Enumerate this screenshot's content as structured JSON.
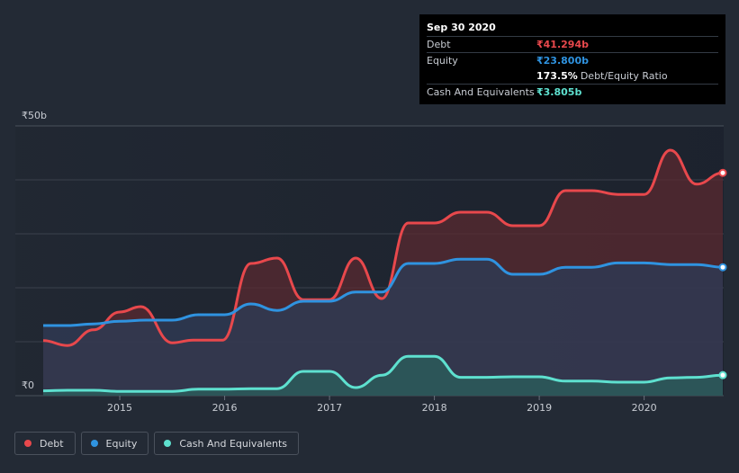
{
  "tooltip": {
    "date": "Sep 30 2020",
    "debt_label": "Debt",
    "debt_value": "₹41.294b",
    "equity_label": "Equity",
    "equity_value": "₹23.800b",
    "ratio_value": "173.5%",
    "ratio_label": "Debt/Equity Ratio",
    "cash_label": "Cash And Equivalents",
    "cash_value": "₹3.805b"
  },
  "legend": {
    "debt": "Debt",
    "equity": "Equity",
    "cash": "Cash And Equivalents"
  },
  "colors": {
    "debt": "#e8484c",
    "equity": "#2f93e0",
    "cash": "#5ee0cf"
  },
  "chart_data": {
    "type": "area",
    "title": "",
    "xlabel": "",
    "ylabel": "",
    "ylim": [
      0,
      50
    ],
    "y_unit": "₹b",
    "y_tick_labels": [
      {
        "value": 50,
        "label": "₹50b"
      },
      {
        "value": 0,
        "label": "₹0"
      }
    ],
    "x_ticks": [
      2015,
      2016,
      2017,
      2018,
      2019,
      2020
    ],
    "xlim": [
      2014.27,
      2020.75
    ],
    "series": [
      {
        "name": "Debt",
        "points": [
          [
            2014.27,
            10.2
          ],
          [
            2014.5,
            9.3
          ],
          [
            2014.75,
            12.2
          ],
          [
            2015.0,
            15.5
          ],
          [
            2015.2,
            16.5
          ],
          [
            2015.5,
            9.8
          ],
          [
            2015.7,
            10.3
          ],
          [
            2015.98,
            10.3
          ],
          [
            2016.25,
            24.5
          ],
          [
            2016.5,
            25.5
          ],
          [
            2016.75,
            17.8
          ],
          [
            2017.0,
            17.8
          ],
          [
            2017.25,
            25.5
          ],
          [
            2017.5,
            18.0
          ],
          [
            2017.75,
            32.0
          ],
          [
            2018.0,
            32.0
          ],
          [
            2018.25,
            34.0
          ],
          [
            2018.5,
            34.0
          ],
          [
            2018.75,
            31.5
          ],
          [
            2019.0,
            31.5
          ],
          [
            2019.25,
            38.0
          ],
          [
            2019.5,
            38.0
          ],
          [
            2019.75,
            37.3
          ],
          [
            2020.0,
            37.3
          ],
          [
            2020.25,
            45.5
          ],
          [
            2020.5,
            39.2
          ],
          [
            2020.75,
            41.294
          ]
        ]
      },
      {
        "name": "Equity",
        "points": [
          [
            2014.27,
            13.0
          ],
          [
            2014.5,
            13.0
          ],
          [
            2014.75,
            13.3
          ],
          [
            2015.0,
            13.8
          ],
          [
            2015.25,
            14.0
          ],
          [
            2015.5,
            14.0
          ],
          [
            2015.75,
            15.0
          ],
          [
            2016.0,
            15.0
          ],
          [
            2016.25,
            17.0
          ],
          [
            2016.5,
            15.8
          ],
          [
            2016.75,
            17.5
          ],
          [
            2017.0,
            17.5
          ],
          [
            2017.25,
            19.2
          ],
          [
            2017.5,
            19.2
          ],
          [
            2017.75,
            24.5
          ],
          [
            2018.0,
            24.5
          ],
          [
            2018.25,
            25.3
          ],
          [
            2018.5,
            25.3
          ],
          [
            2018.75,
            22.5
          ],
          [
            2019.0,
            22.5
          ],
          [
            2019.25,
            23.8
          ],
          [
            2019.5,
            23.8
          ],
          [
            2019.75,
            24.6
          ],
          [
            2020.0,
            24.6
          ],
          [
            2020.25,
            24.3
          ],
          [
            2020.5,
            24.3
          ],
          [
            2020.75,
            23.8
          ]
        ]
      },
      {
        "name": "Cash And Equivalents",
        "points": [
          [
            2014.27,
            0.9
          ],
          [
            2014.5,
            1.0
          ],
          [
            2014.75,
            1.0
          ],
          [
            2015.0,
            0.8
          ],
          [
            2015.25,
            0.8
          ],
          [
            2015.5,
            0.8
          ],
          [
            2015.75,
            1.2
          ],
          [
            2016.0,
            1.2
          ],
          [
            2016.25,
            1.3
          ],
          [
            2016.5,
            1.3
          ],
          [
            2016.75,
            4.5
          ],
          [
            2017.0,
            4.5
          ],
          [
            2017.25,
            1.5
          ],
          [
            2017.5,
            3.8
          ],
          [
            2017.75,
            7.3
          ],
          [
            2018.0,
            7.3
          ],
          [
            2018.25,
            3.4
          ],
          [
            2018.5,
            3.4
          ],
          [
            2018.75,
            3.5
          ],
          [
            2019.0,
            3.5
          ],
          [
            2019.25,
            2.7
          ],
          [
            2019.5,
            2.7
          ],
          [
            2019.75,
            2.5
          ],
          [
            2020.0,
            2.5
          ],
          [
            2020.25,
            3.3
          ],
          [
            2020.5,
            3.4
          ],
          [
            2020.75,
            3.805
          ]
        ]
      }
    ]
  }
}
